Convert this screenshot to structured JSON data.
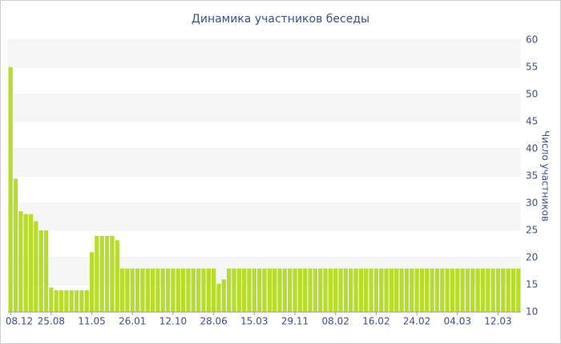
{
  "chart_data": {
    "type": "bar",
    "title": "Динамика участников беседы",
    "y_label": "Число участников",
    "categories": [
      "08.12",
      null,
      null,
      null,
      null,
      null,
      null,
      null,
      "25.08",
      null,
      null,
      null,
      null,
      null,
      null,
      null,
      "11.05",
      null,
      null,
      null,
      null,
      null,
      null,
      null,
      "26.01",
      null,
      null,
      null,
      null,
      null,
      null,
      null,
      "12.10",
      null,
      null,
      null,
      null,
      null,
      null,
      null,
      "28.06",
      null,
      null,
      null,
      null,
      null,
      null,
      null,
      "15.03",
      null,
      null,
      null,
      null,
      null,
      null,
      null,
      "29.11",
      null,
      null,
      null,
      null,
      null,
      null,
      null,
      "08.02",
      null,
      null,
      null,
      null,
      null,
      null,
      null,
      "16.02",
      null,
      null,
      null,
      null,
      null,
      null,
      null,
      "24.02",
      null,
      null,
      null,
      null,
      null,
      null,
      null,
      "04.03",
      null,
      null,
      null,
      null,
      null,
      null,
      null,
      "12.03",
      null,
      null,
      null,
      null
    ],
    "values": [
      55,
      34.5,
      28.5,
      28,
      28,
      26.7,
      25,
      25,
      14.5,
      14,
      14,
      14,
      14,
      14,
      14,
      14,
      21,
      24,
      24,
      24,
      24,
      23.2,
      18,
      18,
      18,
      18,
      18,
      18,
      18,
      18,
      18,
      18,
      18,
      18,
      18,
      18,
      18,
      18,
      18,
      18,
      18,
      15.2,
      16,
      18,
      18,
      18,
      18,
      18,
      18,
      18,
      18,
      18,
      18,
      18,
      18,
      18,
      18,
      18,
      18,
      18,
      18,
      18,
      18,
      18,
      18,
      18,
      18,
      18,
      18,
      18,
      18,
      18,
      18,
      18,
      18,
      18,
      18,
      18,
      18,
      18,
      18,
      18,
      18,
      18,
      18,
      18,
      18,
      18,
      18,
      18,
      18,
      18,
      18,
      18,
      18,
      18,
      18,
      18,
      18,
      18,
      18
    ],
    "color": "#b6dc2e",
    "ylim": [
      10,
      60
    ],
    "yticks": [
      10,
      15,
      20,
      25,
      30,
      35,
      40,
      45,
      50,
      55,
      60
    ],
    "grid": true
  }
}
